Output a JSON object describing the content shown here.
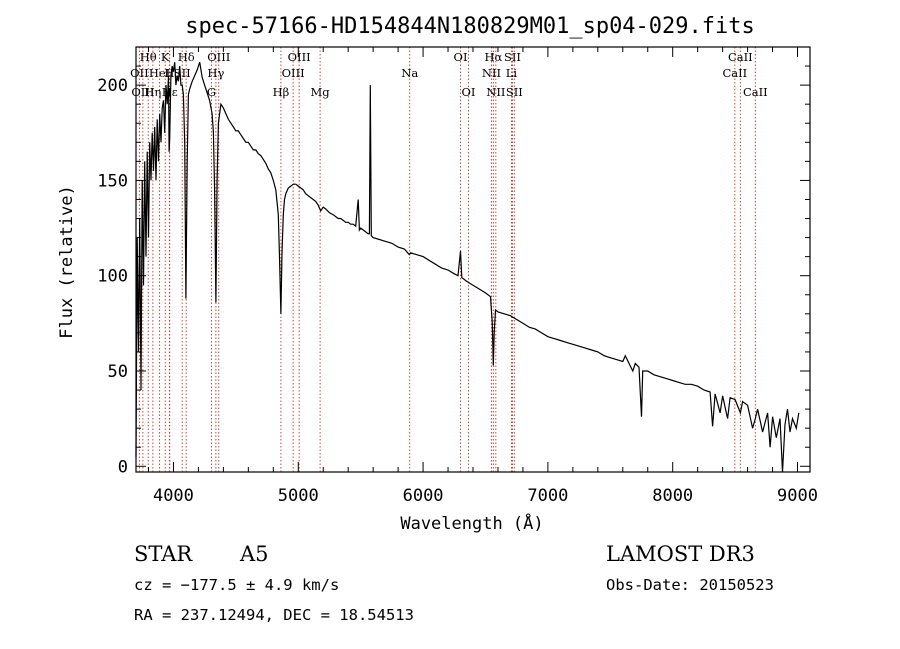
{
  "chart_data": {
    "type": "line",
    "title": "spec-57166-HD154844N180829M01_sp04-029.fits",
    "xlabel": "Wavelength (Å)",
    "ylabel": "Flux (relative)",
    "xlim": [
      3700,
      9100
    ],
    "ylim": [
      -3,
      220
    ],
    "xticks": [
      4000,
      5000,
      6000,
      7000,
      8000,
      9000
    ],
    "yticks": [
      0,
      50,
      100,
      150,
      200
    ],
    "series": [
      {
        "name": "spectrum",
        "points": [
          [
            3700,
            5
          ],
          [
            3710,
            120
          ],
          [
            3720,
            60
          ],
          [
            3730,
            130
          ],
          [
            3740,
            40
          ],
          [
            3750,
            150
          ],
          [
            3760,
            95
          ],
          [
            3770,
            160
          ],
          [
            3780,
            110
          ],
          [
            3790,
            165
          ],
          [
            3800,
            120
          ],
          [
            3810,
            170
          ],
          [
            3820,
            150
          ],
          [
            3830,
            175
          ],
          [
            3840,
            155
          ],
          [
            3850,
            178
          ],
          [
            3860,
            150
          ],
          [
            3870,
            182
          ],
          [
            3880,
            160
          ],
          [
            3890,
            185
          ],
          [
            3900,
            170
          ],
          [
            3910,
            188
          ],
          [
            3920,
            192
          ],
          [
            3930,
            175
          ],
          [
            3940,
            200
          ],
          [
            3950,
            190
          ],
          [
            3960,
            205
          ],
          [
            3965,
            165
          ],
          [
            3970,
            172
          ],
          [
            3980,
            205
          ],
          [
            3990,
            210
          ],
          [
            4000,
            207
          ],
          [
            4010,
            212
          ],
          [
            4020,
            200
          ],
          [
            4030,
            205
          ],
          [
            4040,
            202
          ],
          [
            4050,
            210
          ],
          [
            4060,
            200
          ],
          [
            4070,
            200
          ],
          [
            4080,
            195
          ],
          [
            4090,
            170
          ],
          [
            4100,
            88
          ],
          [
            4110,
            160
          ],
          [
            4120,
            195
          ],
          [
            4130,
            198
          ],
          [
            4150,
            202
          ],
          [
            4170,
            205
          ],
          [
            4190,
            208
          ],
          [
            4210,
            212
          ],
          [
            4230,
            204
          ],
          [
            4250,
            200
          ],
          [
            4270,
            196
          ],
          [
            4290,
            192
          ],
          [
            4310,
            185
          ],
          [
            4320,
            175
          ],
          [
            4330,
            145
          ],
          [
            4340,
            86
          ],
          [
            4350,
            150
          ],
          [
            4360,
            180
          ],
          [
            4380,
            190
          ],
          [
            4400,
            188
          ],
          [
            4420,
            185
          ],
          [
            4440,
            182
          ],
          [
            4460,
            180
          ],
          [
            4480,
            178
          ],
          [
            4500,
            176
          ],
          [
            4520,
            176
          ],
          [
            4540,
            174
          ],
          [
            4560,
            172
          ],
          [
            4580,
            170
          ],
          [
            4600,
            170
          ],
          [
            4620,
            168
          ],
          [
            4640,
            166
          ],
          [
            4660,
            166
          ],
          [
            4680,
            164
          ],
          [
            4700,
            163
          ],
          [
            4720,
            161
          ],
          [
            4740,
            159
          ],
          [
            4760,
            156
          ],
          [
            4780,
            154
          ],
          [
            4800,
            150
          ],
          [
            4820,
            145
          ],
          [
            4840,
            132
          ],
          [
            4850,
            110
          ],
          [
            4861,
            80
          ],
          [
            4870,
            112
          ],
          [
            4880,
            132
          ],
          [
            4890,
            140
          ],
          [
            4900,
            143
          ],
          [
            4920,
            146
          ],
          [
            4940,
            147
          ],
          [
            4960,
            148
          ],
          [
            4980,
            148
          ],
          [
            5000,
            147
          ],
          [
            5020,
            146
          ],
          [
            5040,
            145
          ],
          [
            5060,
            143
          ],
          [
            5080,
            142
          ],
          [
            5100,
            141
          ],
          [
            5120,
            140
          ],
          [
            5140,
            139
          ],
          [
            5160,
            137
          ],
          [
            5180,
            134
          ],
          [
            5200,
            136
          ],
          [
            5220,
            135
          ],
          [
            5250,
            133
          ],
          [
            5280,
            132
          ],
          [
            5300,
            131
          ],
          [
            5320,
            130
          ],
          [
            5340,
            130
          ],
          [
            5360,
            129
          ],
          [
            5380,
            128
          ],
          [
            5400,
            128
          ],
          [
            5420,
            127
          ],
          [
            5440,
            127
          ],
          [
            5460,
            126
          ],
          [
            5480,
            140
          ],
          [
            5490,
            124
          ],
          [
            5500,
            125
          ],
          [
            5520,
            124
          ],
          [
            5540,
            123
          ],
          [
            5560,
            122
          ],
          [
            5570,
            122
          ],
          [
            5577,
            200
          ],
          [
            5585,
            121
          ],
          [
            5600,
            120
          ],
          [
            5650,
            119
          ],
          [
            5700,
            118
          ],
          [
            5750,
            117
          ],
          [
            5800,
            115
          ],
          [
            5850,
            114
          ],
          [
            5890,
            111
          ],
          [
            5900,
            112
          ],
          [
            5950,
            111
          ],
          [
            6000,
            110
          ],
          [
            6050,
            108
          ],
          [
            6100,
            106
          ],
          [
            6150,
            104
          ],
          [
            6200,
            103
          ],
          [
            6250,
            101
          ],
          [
            6280,
            100
          ],
          [
            6300,
            113
          ],
          [
            6310,
            99
          ],
          [
            6350,
            97
          ],
          [
            6400,
            95
          ],
          [
            6450,
            93
          ],
          [
            6500,
            91
          ],
          [
            6540,
            89
          ],
          [
            6555,
            75
          ],
          [
            6563,
            53
          ],
          [
            6570,
            70
          ],
          [
            6580,
            82
          ],
          [
            6600,
            81
          ],
          [
            6650,
            80
          ],
          [
            6700,
            79
          ],
          [
            6750,
            77
          ],
          [
            6800,
            75
          ],
          [
            6850,
            73
          ],
          [
            6900,
            72
          ],
          [
            6950,
            70
          ],
          [
            7000,
            68
          ],
          [
            7050,
            67
          ],
          [
            7100,
            66
          ],
          [
            7150,
            65
          ],
          [
            7200,
            64
          ],
          [
            7250,
            63
          ],
          [
            7300,
            62
          ],
          [
            7350,
            61
          ],
          [
            7400,
            60
          ],
          [
            7450,
            58
          ],
          [
            7500,
            57
          ],
          [
            7550,
            56
          ],
          [
            7600,
            55
          ],
          [
            7620,
            58
          ],
          [
            7650,
            54
          ],
          [
            7680,
            50
          ],
          [
            7700,
            54
          ],
          [
            7730,
            52
          ],
          [
            7750,
            26
          ],
          [
            7760,
            50
          ],
          [
            7800,
            50
          ],
          [
            7850,
            48
          ],
          [
            7900,
            47
          ],
          [
            7950,
            46
          ],
          [
            8000,
            45
          ],
          [
            8050,
            44
          ],
          [
            8100,
            43
          ],
          [
            8150,
            43
          ],
          [
            8200,
            42
          ],
          [
            8250,
            40
          ],
          [
            8300,
            39
          ],
          [
            8320,
            21
          ],
          [
            8340,
            38
          ],
          [
            8380,
            28
          ],
          [
            8400,
            37
          ],
          [
            8440,
            25
          ],
          [
            8460,
            36
          ],
          [
            8500,
            35
          ],
          [
            8542,
            28
          ],
          [
            8560,
            34
          ],
          [
            8600,
            32
          ],
          [
            8640,
            20
          ],
          [
            8662,
            25
          ],
          [
            8680,
            30
          ],
          [
            8720,
            18
          ],
          [
            8760,
            28
          ],
          [
            8780,
            10
          ],
          [
            8800,
            26
          ],
          [
            8830,
            15
          ],
          [
            8860,
            25
          ],
          [
            8880,
            -3
          ],
          [
            8900,
            22
          ],
          [
            8920,
            30
          ],
          [
            8940,
            18
          ],
          [
            8960,
            25
          ],
          [
            8990,
            20
          ],
          [
            9010,
            28
          ]
        ]
      }
    ],
    "line_markers": [
      {
        "label": "Hθ",
        "wavelength": 3798,
        "row": 1
      },
      {
        "label": "OII",
        "wavelength": 3727,
        "row": 2
      },
      {
        "label": "OIII",
        "wavelength": 3755,
        "row": 3
      },
      {
        "label": "Hη",
        "wavelength": 3835,
        "row": 3
      },
      {
        "label": "HeI",
        "wavelength": 3889,
        "row": 2
      },
      {
        "label": "K",
        "wavelength": 3934,
        "row": 1
      },
      {
        "label": "H",
        "wavelength": 3968,
        "row": 2
      },
      {
        "label": "Hε",
        "wavelength": 3970,
        "row": 3
      },
      {
        "label": "Hδ",
        "wavelength": 4102,
        "row": 1
      },
      {
        "label": "SII",
        "wavelength": 4070,
        "row": 2
      },
      {
        "label": "OIII",
        "wavelength": 4363,
        "row": 1
      },
      {
        "label": "Hγ",
        "wavelength": 4340,
        "row": 2
      },
      {
        "label": "G",
        "wavelength": 4305,
        "row": 3
      },
      {
        "label": "Hβ",
        "wavelength": 4861,
        "row": 3
      },
      {
        "label": "OIII",
        "wavelength": 5007,
        "row": 1
      },
      {
        "label": "OIII",
        "wavelength": 4959,
        "row": 2
      },
      {
        "label": "Mg",
        "wavelength": 5175,
        "row": 3
      },
      {
        "label": "Na",
        "wavelength": 5893,
        "row": 2
      },
      {
        "label": "OI",
        "wavelength": 6300,
        "row": 1
      },
      {
        "label": "OI",
        "wavelength": 6364,
        "row": 3
      },
      {
        "label": "Hα",
        "wavelength": 6563,
        "row": 1
      },
      {
        "label": "NII",
        "wavelength": 6548,
        "row": 2
      },
      {
        "label": "NII",
        "wavelength": 6583,
        "row": 3
      },
      {
        "label": "SII",
        "wavelength": 6716,
        "row": 1
      },
      {
        "label": "Li",
        "wavelength": 6708,
        "row": 2
      },
      {
        "label": "SII",
        "wavelength": 6731,
        "row": 3
      },
      {
        "label": "CaII",
        "wavelength": 8542,
        "row": 1
      },
      {
        "label": "CaII",
        "wavelength": 8498,
        "row": 2
      },
      {
        "label": "CaII",
        "wavelength": 8662,
        "row": 3
      }
    ]
  },
  "info": {
    "object_class": "STAR",
    "subclass": "A5",
    "survey": "LAMOST DR3",
    "cz": "cz = −177.5 ± 4.9 km/s",
    "obs_date": "Obs-Date: 20150523",
    "coords": "RA = 237.12494, DEC =  18.54513"
  }
}
